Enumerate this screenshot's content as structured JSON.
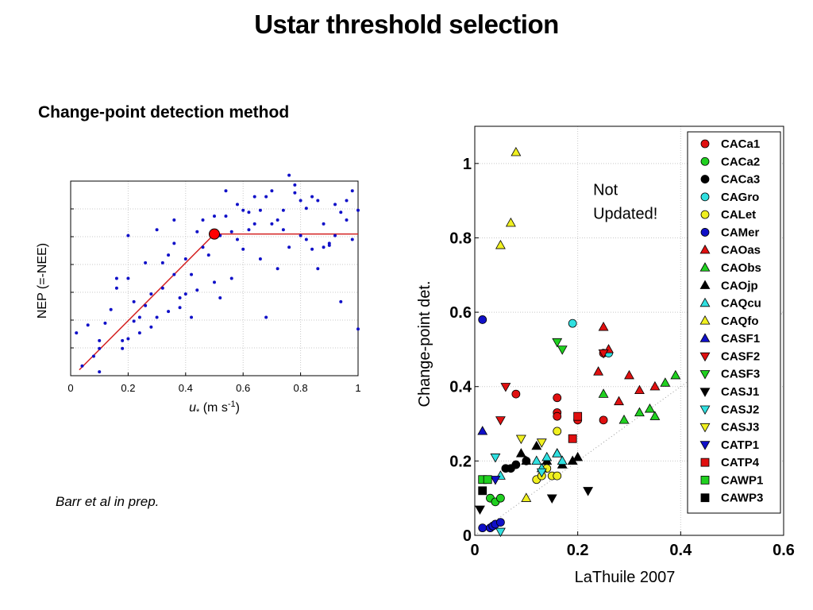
{
  "slide": {
    "title": "Ustar threshold selection",
    "subtitle": "Change-point detection method",
    "citation": "Barr et al in prep."
  },
  "chart_data": [
    {
      "type": "scatter",
      "title": "",
      "xlabel": "u* (m s-1)",
      "ylabel": "NEP (=-NEE)",
      "xlim": [
        0,
        1
      ],
      "ylim": [
        0,
        1
      ],
      "xticks": [
        0,
        0.2,
        0.4,
        0.6,
        0.8,
        1
      ],
      "xtick_labels": [
        "0",
        "0.2",
        "0.4",
        "0.6",
        "0.8",
        "1"
      ],
      "yticks_count": 6,
      "ytick_labels": [],
      "grid": true,
      "legend": "none",
      "point_color": "#1010c8",
      "fit_color": "#d42020",
      "change_point": {
        "x": 0.5,
        "y": 0.728
      },
      "fit_line": [
        [
          0.03,
          0.03
        ],
        [
          0.5,
          0.728
        ],
        [
          1.0,
          0.728
        ]
      ],
      "series": [
        {
          "name": "",
          "x": [
            0.02,
            0.04,
            0.06,
            0.08,
            0.1,
            0.1,
            0.1,
            0.12,
            0.14,
            0.16,
            0.16,
            0.18,
            0.18,
            0.2,
            0.2,
            0.2,
            0.22,
            0.22,
            0.24,
            0.24,
            0.26,
            0.26,
            0.28,
            0.28,
            0.3,
            0.3,
            0.32,
            0.32,
            0.34,
            0.34,
            0.36,
            0.36,
            0.36,
            0.38,
            0.38,
            0.4,
            0.4,
            0.42,
            0.42,
            0.44,
            0.44,
            0.46,
            0.46,
            0.48,
            0.5,
            0.5,
            0.52,
            0.52,
            0.54,
            0.54,
            0.56,
            0.56,
            0.58,
            0.58,
            0.6,
            0.6,
            0.62,
            0.62,
            0.64,
            0.64,
            0.66,
            0.66,
            0.68,
            0.68,
            0.7,
            0.7,
            0.72,
            0.72,
            0.74,
            0.74,
            0.76,
            0.76,
            0.78,
            0.78,
            0.8,
            0.8,
            0.82,
            0.82,
            0.84,
            0.84,
            0.86,
            0.86,
            0.88,
            0.88,
            0.9,
            0.9,
            0.92,
            0.92,
            0.94,
            0.94,
            0.96,
            0.96,
            0.98,
            0.98,
            1.0,
            1.0
          ],
          "y": [
            0.22,
            0.05,
            0.26,
            0.1,
            0.18,
            0.02,
            0.14,
            0.27,
            0.34,
            0.5,
            0.45,
            0.18,
            0.14,
            0.19,
            0.5,
            0.72,
            0.38,
            0.28,
            0.3,
            0.22,
            0.36,
            0.58,
            0.42,
            0.25,
            0.75,
            0.3,
            0.45,
            0.58,
            0.33,
            0.62,
            0.52,
            0.68,
            0.8,
            0.4,
            0.35,
            0.42,
            0.6,
            0.3,
            0.52,
            0.74,
            0.44,
            0.66,
            0.8,
            0.62,
            0.82,
            0.48,
            0.72,
            0.4,
            0.82,
            0.95,
            0.74,
            0.5,
            0.88,
            0.7,
            0.85,
            0.65,
            0.84,
            0.75,
            0.78,
            0.92,
            0.6,
            0.85,
            0.92,
            0.3,
            0.95,
            0.78,
            0.55,
            0.8,
            0.85,
            0.75,
            1.03,
            0.66,
            0.98,
            0.94,
            0.72,
            0.9,
            0.7,
            0.86,
            0.92,
            0.65,
            0.9,
            0.55,
            0.78,
            0.66,
            0.67,
            0.68,
            0.72,
            0.88,
            0.84,
            0.38,
            0.8,
            0.9,
            0.7,
            0.95,
            0.85,
            0.24
          ]
        }
      ]
    },
    {
      "type": "scatter",
      "title": "",
      "xlabel": "LaThuile 2007",
      "ylabel": "Change-point det.",
      "xlim": [
        0,
        0.6
      ],
      "ylim": [
        0,
        1.1
      ],
      "xticks": [
        0,
        0.2,
        0.4,
        0.6
      ],
      "xtick_labels": [
        "0",
        "0.2",
        "0.4",
        "0.6"
      ],
      "yticks": [
        0,
        0.2,
        0.4,
        0.6,
        0.8,
        1
      ],
      "ytick_labels": [
        "0",
        "0.2",
        "0.4",
        "0.6",
        "0.8",
        "1"
      ],
      "grid": true,
      "legend": "right",
      "one_to_one_line": true,
      "annotation": {
        "lines": [
          "Not",
          "Updated!"
        ],
        "x": 0.23,
        "y": 0.93
      },
      "series": [
        {
          "name": "CACa1",
          "marker": "circle",
          "color": "#e01010",
          "x": [
            0.08,
            0.16,
            0.16,
            0.16,
            0.2,
            0.25,
            0.25
          ],
          "y": [
            0.38,
            0.37,
            0.33,
            0.32,
            0.31,
            0.49,
            0.31
          ]
        },
        {
          "name": "CACa2",
          "marker": "circle",
          "color": "#20d020",
          "x": [
            0.03,
            0.04,
            0.05
          ],
          "y": [
            0.1,
            0.09,
            0.1
          ]
        },
        {
          "name": "CACa3",
          "marker": "circle",
          "color": "#000000",
          "x": [
            0.06,
            0.07,
            0.08,
            0.1
          ],
          "y": [
            0.18,
            0.18,
            0.19,
            0.2
          ]
        },
        {
          "name": "CAGro",
          "marker": "circle",
          "color": "#30e0e0",
          "x": [
            0.19,
            0.26
          ],
          "y": [
            0.57,
            0.49
          ]
        },
        {
          "name": "CALet",
          "marker": "circle",
          "color": "#f0f020",
          "x": [
            0.12,
            0.13,
            0.14,
            0.15,
            0.16,
            0.16
          ],
          "y": [
            0.15,
            0.16,
            0.18,
            0.16,
            0.16,
            0.28
          ]
        },
        {
          "name": "CAMer",
          "marker": "circle",
          "color": "#1010c8",
          "x": [
            0.015,
            0.03,
            0.035,
            0.04,
            0.05,
            0.015
          ],
          "y": [
            0.02,
            0.02,
            0.025,
            0.03,
            0.035,
            0.58
          ]
        },
        {
          "name": "CAOas",
          "marker": "triangle-up",
          "color": "#e01010",
          "x": [
            0.24,
            0.25,
            0.26,
            0.28,
            0.3,
            0.32,
            0.35
          ],
          "y": [
            0.44,
            0.56,
            0.5,
            0.36,
            0.43,
            0.39,
            0.4
          ]
        },
        {
          "name": "CAObs",
          "marker": "triangle-up",
          "color": "#20d020",
          "x": [
            0.25,
            0.29,
            0.32,
            0.34,
            0.35,
            0.37,
            0.39
          ],
          "y": [
            0.38,
            0.31,
            0.33,
            0.34,
            0.32,
            0.41,
            0.43
          ]
        },
        {
          "name": "CAOjp",
          "marker": "triangle-up",
          "color": "#000000",
          "x": [
            0.09,
            0.1,
            0.12,
            0.14,
            0.16,
            0.17,
            0.19,
            0.2
          ],
          "y": [
            0.22,
            0.2,
            0.24,
            0.2,
            0.22,
            0.19,
            0.2,
            0.21
          ]
        },
        {
          "name": "CAQcu",
          "marker": "triangle-up",
          "color": "#30e0e0",
          "x": [
            0.05,
            0.12,
            0.13,
            0.14,
            0.16,
            0.17
          ],
          "y": [
            0.16,
            0.2,
            0.18,
            0.21,
            0.22,
            0.2
          ]
        },
        {
          "name": "CAQfo",
          "marker": "triangle-up",
          "color": "#f0f020",
          "x": [
            0.08,
            0.07,
            0.05,
            0.1
          ],
          "y": [
            1.03,
            0.84,
            0.78,
            0.1
          ]
        },
        {
          "name": "CASF1",
          "marker": "triangle-up",
          "color": "#1010c8",
          "x": [
            0.015
          ],
          "y": [
            0.28
          ]
        },
        {
          "name": "CASF2",
          "marker": "triangle-down",
          "color": "#e01010",
          "x": [
            0.06,
            0.05,
            0.25
          ],
          "y": [
            0.4,
            0.31,
            0.49
          ]
        },
        {
          "name": "CASF3",
          "marker": "triangle-down",
          "color": "#20d020",
          "x": [
            0.16,
            0.17
          ],
          "y": [
            0.52,
            0.5
          ]
        },
        {
          "name": "CASJ1",
          "marker": "triangle-down",
          "color": "#000000",
          "x": [
            0.01,
            0.15,
            0.22
          ],
          "y": [
            0.07,
            0.1,
            0.12
          ]
        },
        {
          "name": "CASJ2",
          "marker": "triangle-down",
          "color": "#30e0e0",
          "x": [
            0.04,
            0.05,
            0.13
          ],
          "y": [
            0.21,
            0.01,
            0.17
          ]
        },
        {
          "name": "CASJ3",
          "marker": "triangle-down",
          "color": "#f0f020",
          "x": [
            0.09,
            0.13
          ],
          "y": [
            0.26,
            0.25
          ]
        },
        {
          "name": "CATP1",
          "marker": "triangle-down",
          "color": "#1010c8",
          "x": [
            0.04
          ],
          "y": [
            0.15
          ]
        },
        {
          "name": "CATP4",
          "marker": "square",
          "color": "#e01010",
          "x": [
            0.19,
            0.2
          ],
          "y": [
            0.26,
            0.32
          ]
        },
        {
          "name": "CAWP1",
          "marker": "square",
          "color": "#20d020",
          "x": [
            0.015,
            0.025
          ],
          "y": [
            0.15,
            0.15
          ]
        },
        {
          "name": "CAWP3",
          "marker": "square",
          "color": "#000000",
          "x": [
            0.015
          ],
          "y": [
            0.12
          ]
        }
      ]
    }
  ]
}
